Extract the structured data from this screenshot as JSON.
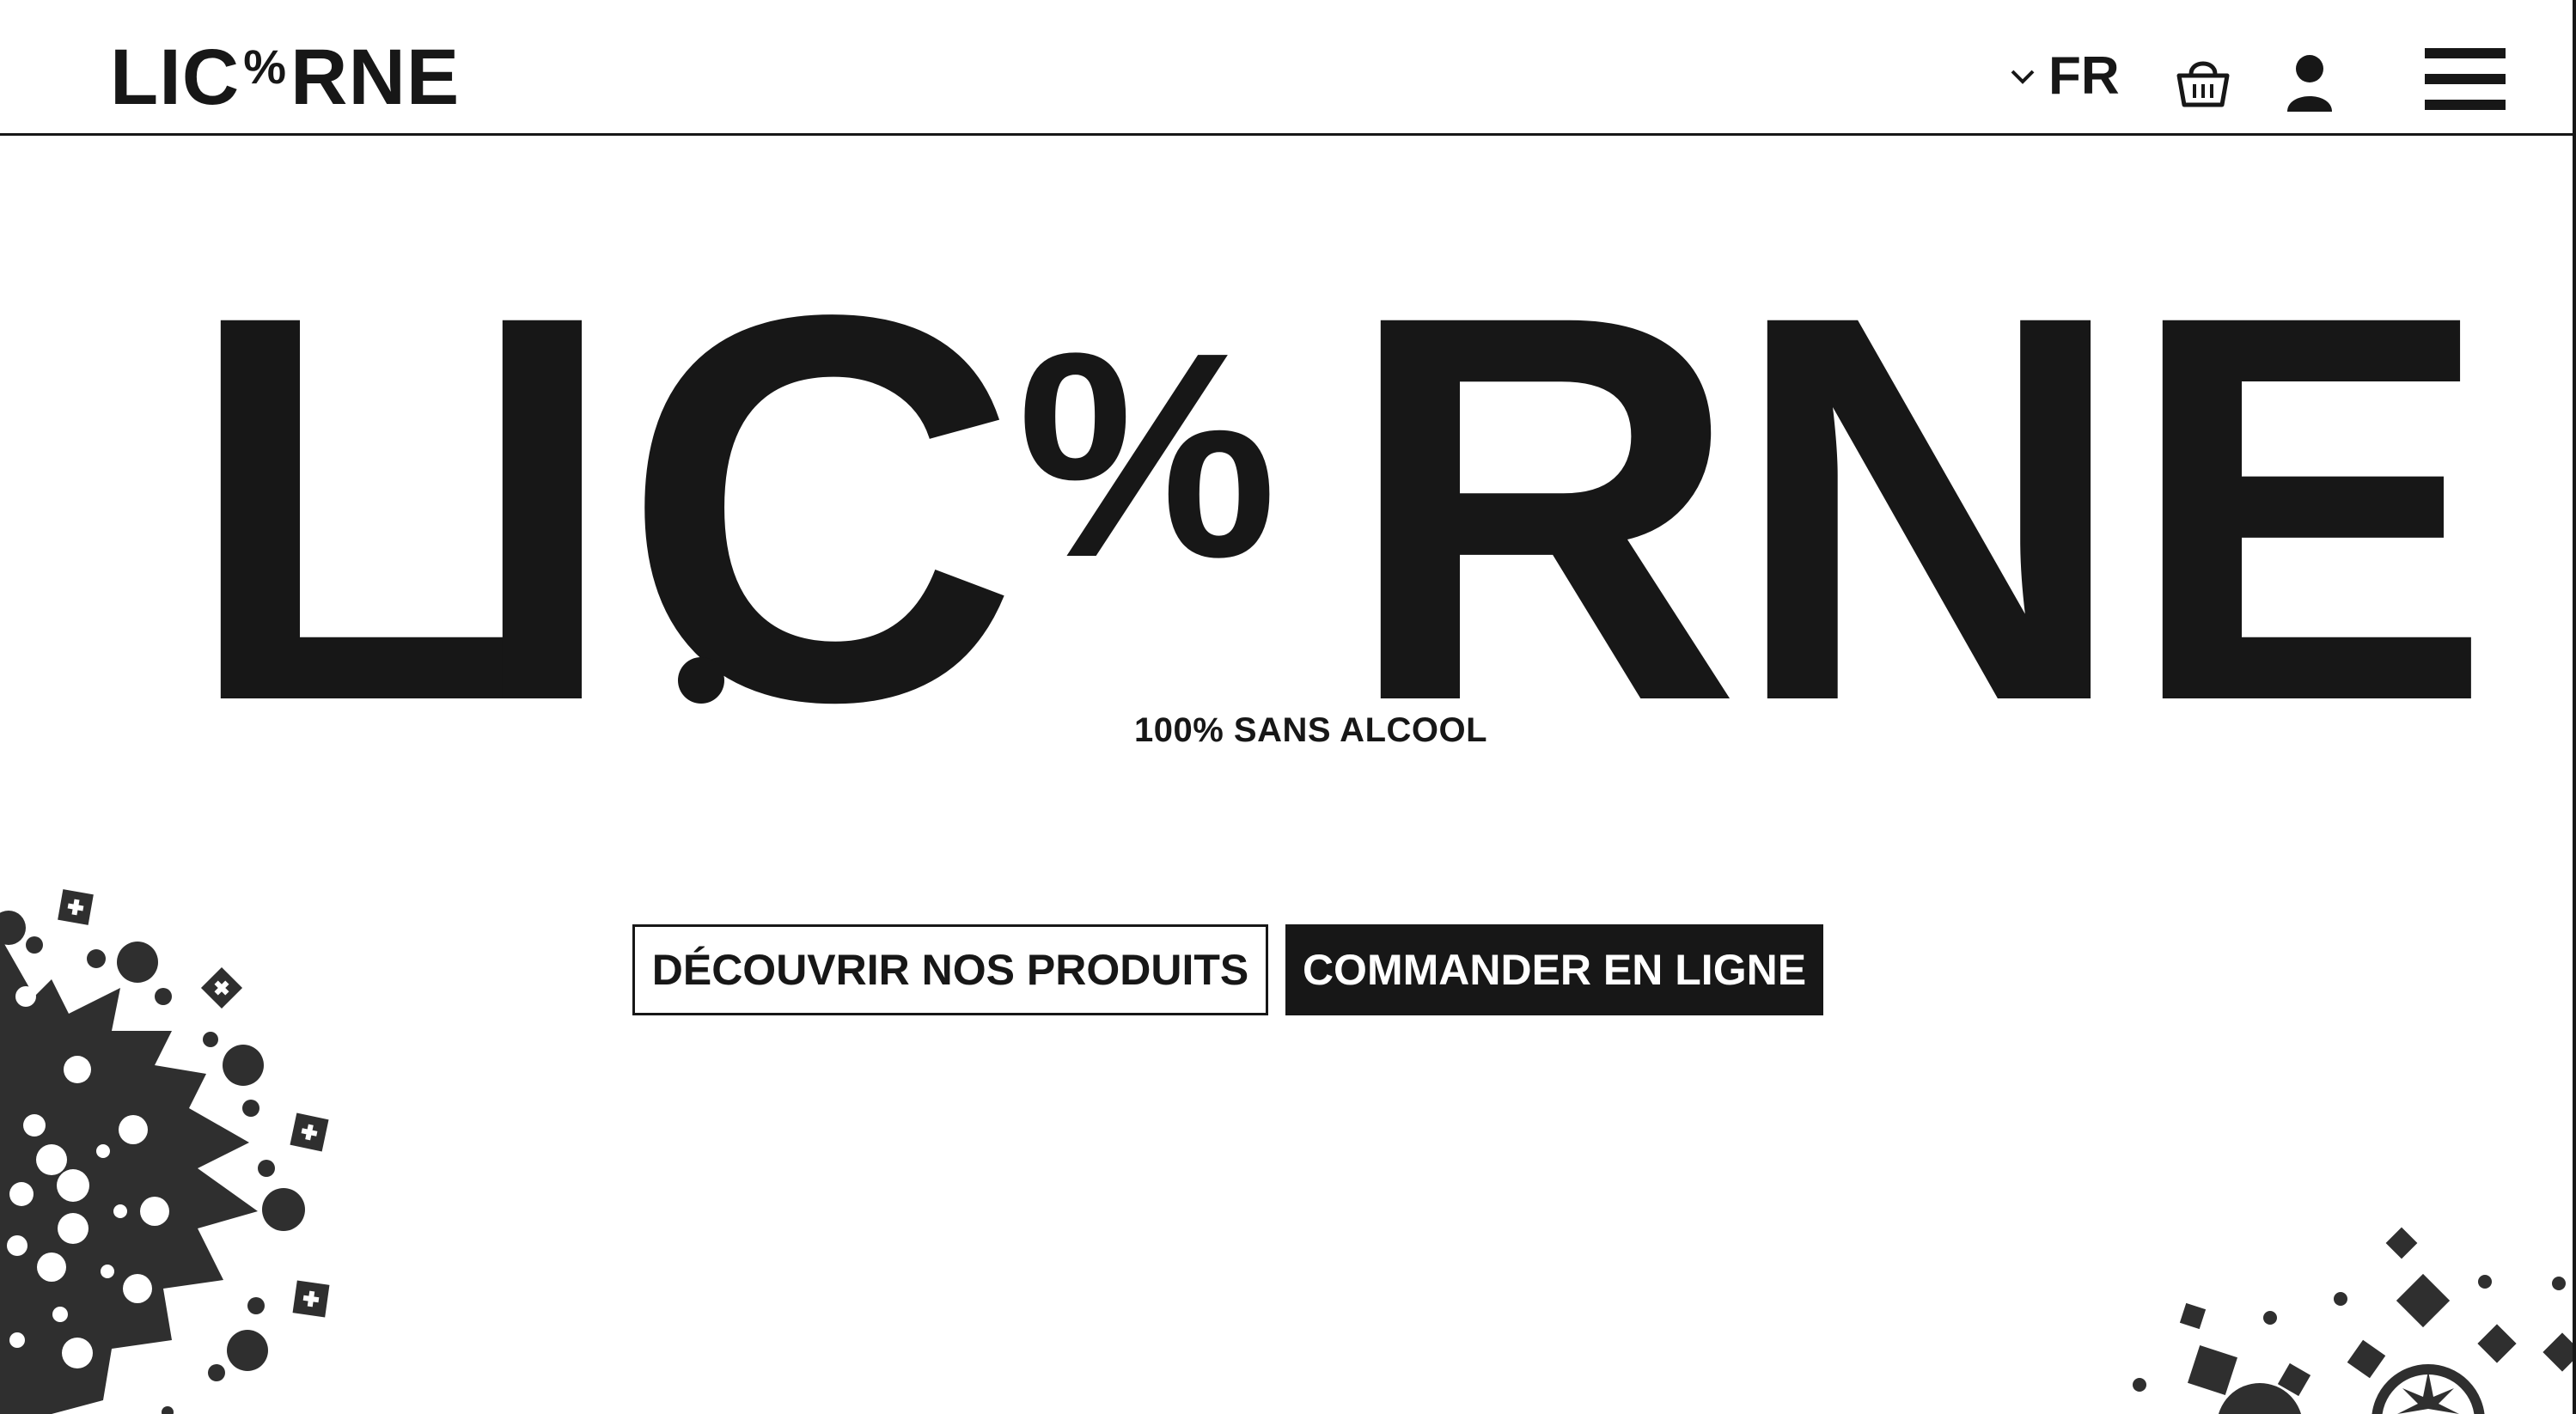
{
  "header": {
    "logo_parts": {
      "before": "LIC",
      "symbol": "%",
      "after": "RNE"
    },
    "language": {
      "label": "FR",
      "icon": "chevron-down-icon"
    },
    "basket_icon": "basket-icon",
    "account_icon": "user-icon",
    "menu_icon": "hamburger-menu-icon"
  },
  "hero": {
    "title_parts": {
      "l": "L",
      "i": "I",
      "c": "C",
      "r": "R",
      "n": "N",
      "e": "E",
      "symbol": "%"
    },
    "subtitle": "100% SANS ALCOOL"
  },
  "actions": {
    "discover_label": "DÉCOUVRIR NOS PRODUITS",
    "order_label": "COMMANDER EN LIGNE"
  },
  "colors": {
    "ink": "#171717",
    "background": "#ffffff",
    "decor": "#2f2f2f"
  }
}
